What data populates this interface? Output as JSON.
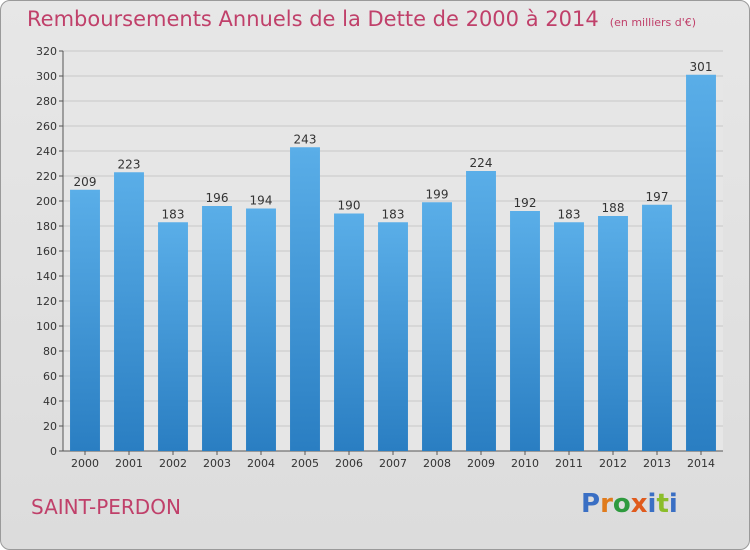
{
  "header": {
    "title": "Remboursements Annuels de la Dette de 2000 à 2014",
    "unit": "(en milliers d'€)"
  },
  "footer": {
    "commune": "SAINT-PERDON",
    "logo": {
      "letters": [
        "P",
        "r",
        "o",
        "x",
        "i",
        "t",
        "i"
      ],
      "colors": [
        "#3a6fc4",
        "#e07b1c",
        "#2e9a3e",
        "#e05a1c",
        "#3a6fc4",
        "#8bbd2a",
        "#3a6fc4"
      ]
    }
  },
  "colors": {
    "bar_light": "#5aaee8",
    "bar_dark": "#2a7ec2",
    "title": "#c0406a",
    "grid": "#c8c8c8"
  },
  "chart_data": {
    "type": "bar",
    "title": "Remboursements Annuels de la Dette de 2000 à 2014",
    "subtitle": "(en milliers d'€)",
    "categories": [
      "2000",
      "2001",
      "2002",
      "2003",
      "2004",
      "2005",
      "2006",
      "2007",
      "2008",
      "2009",
      "2010",
      "2011",
      "2012",
      "2013",
      "2014"
    ],
    "values": [
      209,
      223,
      183,
      196,
      194,
      243,
      190,
      183,
      199,
      224,
      192,
      183,
      188,
      197,
      301
    ],
    "ylim": [
      0,
      320
    ],
    "yticks": [
      0,
      20,
      40,
      60,
      80,
      100,
      120,
      140,
      160,
      180,
      200,
      220,
      240,
      260,
      280,
      300,
      320
    ],
    "grid": true,
    "xlabel": "",
    "ylabel": ""
  }
}
